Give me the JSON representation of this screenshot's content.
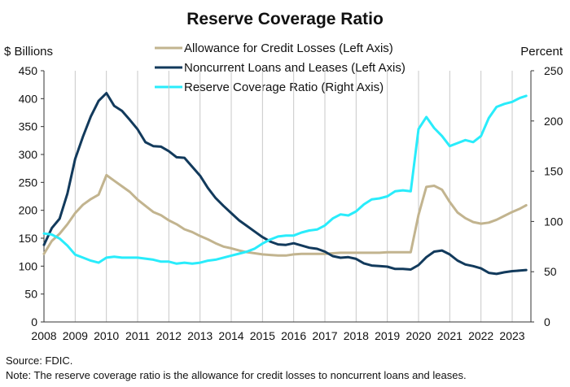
{
  "chart_data": {
    "type": "line",
    "title": "Reserve Coverage Ratio",
    "left_axis_label": "$ Billions",
    "right_axis_label": "Percent",
    "left_ylim": [
      0,
      450
    ],
    "right_ylim": [
      0,
      250
    ],
    "left_ticks": [
      "0",
      "50",
      "100",
      "150",
      "200",
      "250",
      "300",
      "350",
      "400",
      "450"
    ],
    "right_ticks": [
      "0",
      "50",
      "100",
      "150",
      "200",
      "250"
    ],
    "xlim": [
      2008,
      2023.6
    ],
    "x_ticks": [
      "2008",
      "2009",
      "2010",
      "2011",
      "2012",
      "2013",
      "2014",
      "2015",
      "2016",
      "2017",
      "2018",
      "2019",
      "2020",
      "2021",
      "2022",
      "2023"
    ],
    "grid": "vertical",
    "legend_position": "top-center",
    "series": [
      {
        "name": "Allowance for Credit Losses (Left Axis)",
        "axis": "left",
        "color": "#c2b48f",
        "x": [
          2008.0,
          2008.25,
          2008.5,
          2008.75,
          2009.0,
          2009.25,
          2009.5,
          2009.75,
          2010.0,
          2010.25,
          2010.5,
          2010.75,
          2011.0,
          2011.25,
          2011.5,
          2011.75,
          2012.0,
          2012.25,
          2012.5,
          2012.75,
          2013.0,
          2013.25,
          2013.5,
          2013.75,
          2014.0,
          2014.25,
          2014.5,
          2014.75,
          2015.0,
          2015.25,
          2015.5,
          2015.75,
          2016.0,
          2016.25,
          2016.5,
          2016.75,
          2017.0,
          2017.25,
          2017.5,
          2017.75,
          2018.0,
          2018.25,
          2018.5,
          2018.75,
          2019.0,
          2019.25,
          2019.5,
          2019.75,
          2020.0,
          2020.25,
          2020.5,
          2020.75,
          2021.0,
          2021.25,
          2021.5,
          2021.75,
          2022.0,
          2022.25,
          2022.5,
          2022.75,
          2023.0,
          2023.25
        ],
        "y": [
          122,
          145,
          158,
          175,
          195,
          210,
          220,
          228,
          263,
          253,
          243,
          233,
          219,
          208,
          197,
          191,
          182,
          175,
          166,
          161,
          154,
          148,
          141,
          135,
          132,
          128,
          125,
          123,
          121,
          120,
          119,
          119,
          121,
          122,
          122,
          122,
          122,
          123,
          124,
          124,
          124,
          124,
          124,
          124,
          125,
          125,
          125,
          125,
          192,
          242,
          244,
          237,
          215,
          196,
          186,
          179,
          176,
          178,
          183,
          190,
          197,
          203
        ],
        "y_end": 209
      },
      {
        "name": "Noncurrent Loans and Leases (Left Axis)",
        "axis": "left",
        "color": "#123a5c",
        "x": [
          2008.0,
          2008.25,
          2008.5,
          2008.75,
          2009.0,
          2009.25,
          2009.5,
          2009.75,
          2010.0,
          2010.25,
          2010.5,
          2010.75,
          2011.0,
          2011.25,
          2011.5,
          2011.75,
          2012.0,
          2012.25,
          2012.5,
          2012.75,
          2013.0,
          2013.25,
          2013.5,
          2013.75,
          2014.0,
          2014.25,
          2014.5,
          2014.75,
          2015.0,
          2015.25,
          2015.5,
          2015.75,
          2016.0,
          2016.25,
          2016.5,
          2016.75,
          2017.0,
          2017.25,
          2017.5,
          2017.75,
          2018.0,
          2018.25,
          2018.5,
          2018.75,
          2019.0,
          2019.25,
          2019.5,
          2019.75,
          2020.0,
          2020.25,
          2020.5,
          2020.75,
          2021.0,
          2021.25,
          2021.5,
          2021.75,
          2022.0,
          2022.25,
          2022.5,
          2022.75,
          2023.0,
          2023.25
        ],
        "y": [
          138,
          168,
          185,
          230,
          292,
          332,
          368,
          396,
          410,
          387,
          378,
          362,
          345,
          322,
          315,
          314,
          306,
          295,
          294,
          278,
          262,
          240,
          222,
          208,
          195,
          182,
          172,
          162,
          152,
          144,
          139,
          138,
          141,
          137,
          133,
          131,
          126,
          118,
          115,
          116,
          113,
          105,
          101,
          100,
          99,
          95,
          95,
          94,
          102,
          116,
          126,
          128,
          121,
          110,
          103,
          100,
          96,
          88,
          86,
          89,
          91,
          92
        ],
        "y_end": 93
      },
      {
        "name": "Reserve Coverage Ratio (Right Axis)",
        "axis": "right",
        "color": "#29ecfb",
        "x": [
          2008.0,
          2008.25,
          2008.5,
          2008.75,
          2009.0,
          2009.25,
          2009.5,
          2009.75,
          2010.0,
          2010.25,
          2010.5,
          2010.75,
          2011.0,
          2011.25,
          2011.5,
          2011.75,
          2012.0,
          2012.25,
          2012.5,
          2012.75,
          2013.0,
          2013.25,
          2013.5,
          2013.75,
          2014.0,
          2014.25,
          2014.5,
          2014.75,
          2015.0,
          2015.25,
          2015.5,
          2015.75,
          2016.0,
          2016.25,
          2016.5,
          2016.75,
          2017.0,
          2017.25,
          2017.5,
          2017.75,
          2018.0,
          2018.25,
          2018.5,
          2018.75,
          2019.0,
          2019.25,
          2019.5,
          2019.75,
          2020.0,
          2020.25,
          2020.5,
          2020.75,
          2021.0,
          2021.25,
          2021.5,
          2021.75,
          2022.0,
          2022.25,
          2022.5,
          2022.75,
          2023.0,
          2023.25
        ],
        "y": [
          88,
          87,
          83,
          76,
          67,
          64,
          61,
          59,
          64,
          65,
          64,
          64,
          64,
          63,
          62,
          60,
          60,
          58,
          59,
          58,
          59,
          61,
          62,
          64,
          66,
          68,
          70,
          73,
          78,
          82,
          85,
          86,
          86,
          89,
          91,
          92,
          96,
          103,
          107,
          106,
          110,
          117,
          122,
          123,
          125,
          130,
          131,
          130,
          192,
          204,
          193,
          185,
          175,
          178,
          181,
          179,
          185,
          203,
          214,
          217,
          219,
          223
        ],
        "y_end": 225
      }
    ],
    "source_note": "Source: FDIC.",
    "explanatory_note": "Note: The reserve coverage ratio is the allowance for credit losses to noncurrent loans and leases."
  }
}
